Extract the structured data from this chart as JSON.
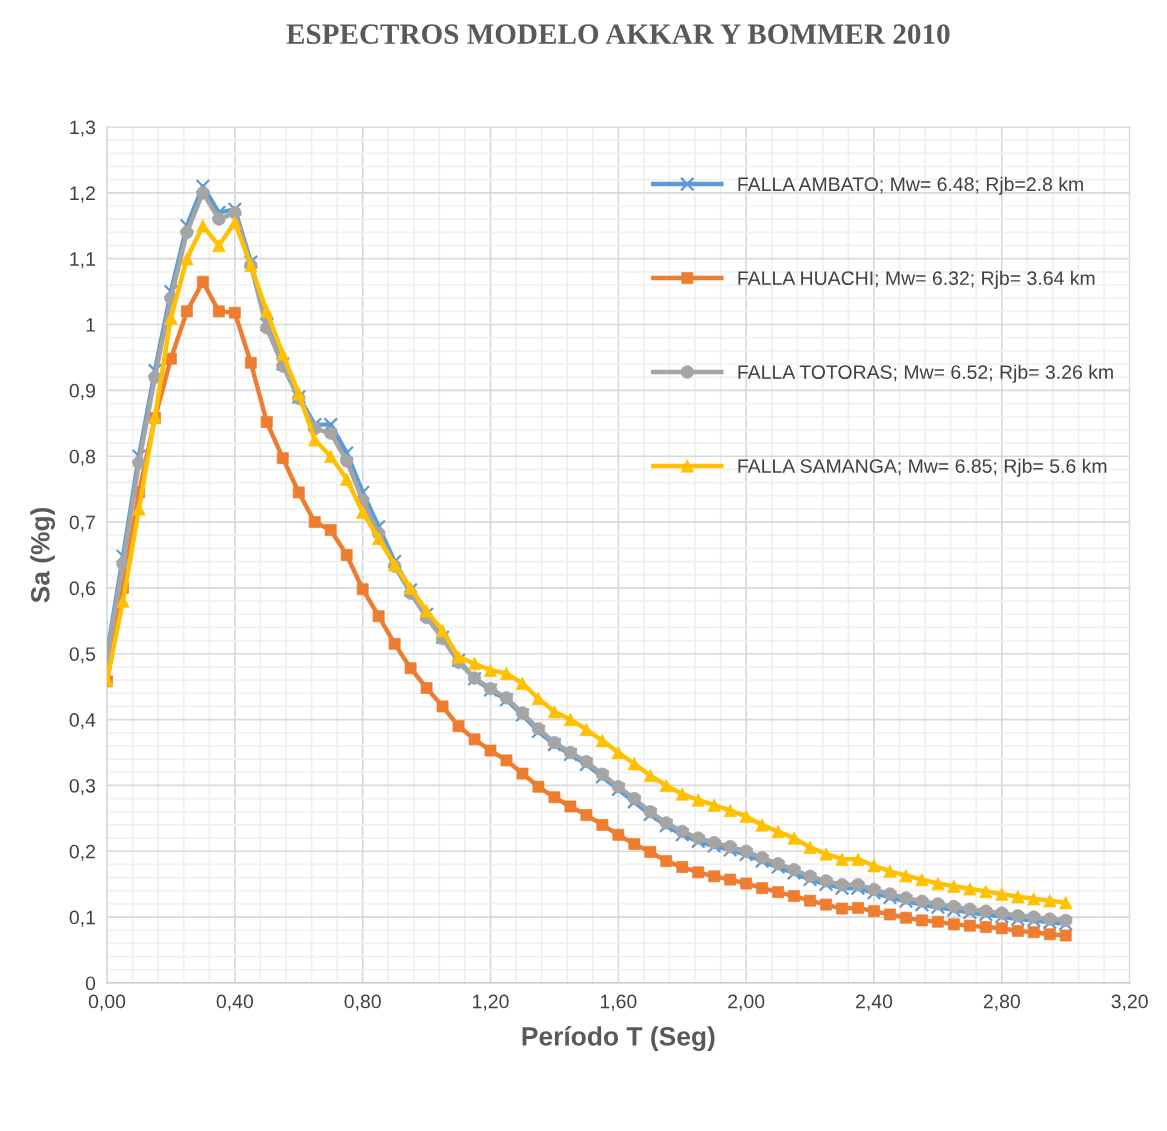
{
  "chart_data": {
    "type": "line",
    "title": "ESPECTROS MODELO AKKAR Y BOMMER 2010",
    "xlabel": "Período T (Seg)",
    "ylabel": "Sa (%g)",
    "x": [
      0,
      0.05,
      0.1,
      0.15,
      0.2,
      0.25,
      0.3,
      0.35,
      0.4,
      0.45,
      0.5,
      0.55,
      0.6,
      0.65,
      0.7,
      0.75,
      0.8,
      0.85,
      0.9,
      0.95,
      1.0,
      1.05,
      1.1,
      1.15,
      1.2,
      1.25,
      1.3,
      1.35,
      1.4,
      1.45,
      1.5,
      1.55,
      1.6,
      1.65,
      1.7,
      1.75,
      1.8,
      1.85,
      1.9,
      1.95,
      2.0,
      2.05,
      2.1,
      2.15,
      2.2,
      2.25,
      2.3,
      2.35,
      2.4,
      2.45,
      2.5,
      2.55,
      2.6,
      2.65,
      2.7,
      2.75,
      2.8,
      2.85,
      2.9,
      2.95,
      3.0
    ],
    "series": [
      {
        "name": "FALLA AMBATO; Mw= 6.48; Rjb=2.8 km",
        "color": "#5b9bd5",
        "marker": "cross",
        "values": [
          0.5,
          0.648,
          0.8,
          0.93,
          1.05,
          1.15,
          1.21,
          1.17,
          1.175,
          1.095,
          1.0,
          0.94,
          0.89,
          0.848,
          0.848,
          0.805,
          0.745,
          0.693,
          0.64,
          0.597,
          0.56,
          0.525,
          0.49,
          0.462,
          0.445,
          0.43,
          0.407,
          0.382,
          0.362,
          0.347,
          0.332,
          0.313,
          0.294,
          0.275,
          0.256,
          0.239,
          0.225,
          0.215,
          0.208,
          0.202,
          0.195,
          0.185,
          0.176,
          0.167,
          0.157,
          0.15,
          0.144,
          0.144,
          0.137,
          0.13,
          0.124,
          0.119,
          0.115,
          0.111,
          0.107,
          0.104,
          0.101,
          0.097,
          0.095,
          0.092,
          0.09
        ]
      },
      {
        "name": "FALLA HUACHI; Mw= 6.32; Rjb= 3.64 km",
        "color": "#ed7d31",
        "marker": "square",
        "values": [
          0.458,
          0.6,
          0.745,
          0.858,
          0.948,
          1.02,
          1.065,
          1.02,
          1.018,
          0.942,
          0.852,
          0.797,
          0.745,
          0.7,
          0.688,
          0.65,
          0.598,
          0.557,
          0.515,
          0.478,
          0.448,
          0.42,
          0.39,
          0.37,
          0.353,
          0.338,
          0.318,
          0.298,
          0.282,
          0.268,
          0.255,
          0.24,
          0.225,
          0.211,
          0.199,
          0.185,
          0.176,
          0.168,
          0.162,
          0.157,
          0.151,
          0.144,
          0.138,
          0.132,
          0.125,
          0.119,
          0.113,
          0.114,
          0.109,
          0.104,
          0.099,
          0.095,
          0.093,
          0.089,
          0.087,
          0.085,
          0.083,
          0.079,
          0.077,
          0.074,
          0.072
        ]
      },
      {
        "name": "FALLA TOTORAS; Mw= 6.52; Rjb= 3.26 km",
        "color": "#a5a5a5",
        "marker": "circle",
        "values": [
          0.495,
          0.637,
          0.79,
          0.92,
          1.04,
          1.14,
          1.2,
          1.16,
          1.17,
          1.09,
          0.995,
          0.937,
          0.888,
          0.842,
          0.835,
          0.793,
          0.733,
          0.683,
          0.633,
          0.592,
          0.555,
          0.523,
          0.487,
          0.463,
          0.447,
          0.433,
          0.41,
          0.386,
          0.365,
          0.35,
          0.336,
          0.317,
          0.298,
          0.28,
          0.26,
          0.243,
          0.23,
          0.22,
          0.213,
          0.207,
          0.2,
          0.19,
          0.181,
          0.172,
          0.162,
          0.155,
          0.149,
          0.149,
          0.142,
          0.135,
          0.129,
          0.124,
          0.12,
          0.116,
          0.112,
          0.109,
          0.106,
          0.102,
          0.1,
          0.097,
          0.095
        ]
      },
      {
        "name": "FALLA SAMANGA; Mw= 6.85; Rjb= 5.6 km",
        "color": "#ffc000",
        "marker": "triangle",
        "values": [
          0.46,
          0.58,
          0.72,
          0.86,
          1.01,
          1.1,
          1.15,
          1.12,
          1.155,
          1.09,
          1.02,
          0.955,
          0.895,
          0.825,
          0.8,
          0.765,
          0.715,
          0.675,
          0.635,
          0.6,
          0.565,
          0.535,
          0.495,
          0.485,
          0.475,
          0.47,
          0.455,
          0.432,
          0.412,
          0.4,
          0.385,
          0.368,
          0.35,
          0.333,
          0.315,
          0.3,
          0.287,
          0.278,
          0.27,
          0.262,
          0.253,
          0.24,
          0.23,
          0.22,
          0.206,
          0.196,
          0.188,
          0.188,
          0.178,
          0.17,
          0.163,
          0.157,
          0.151,
          0.147,
          0.143,
          0.139,
          0.135,
          0.131,
          0.128,
          0.125,
          0.122
        ]
      }
    ],
    "xlim": [
      0,
      3.2
    ],
    "xticks": [
      {
        "value": 0,
        "label": "0,00"
      },
      {
        "value": 0.4,
        "label": "0,40"
      },
      {
        "value": 0.8,
        "label": "0,80"
      },
      {
        "value": 1.2,
        "label": "1,20"
      },
      {
        "value": 1.6,
        "label": "1,60"
      },
      {
        "value": 2.0,
        "label": "2,00"
      },
      {
        "value": 2.4,
        "label": "2,40"
      },
      {
        "value": 2.8,
        "label": "2,80"
      },
      {
        "value": 3.2,
        "label": "3,20"
      }
    ],
    "ylim": [
      0,
      1.3
    ],
    "yticks": [
      0,
      {
        "value": 0.1,
        "label": "0,1"
      },
      {
        "value": 0.2,
        "label": "0,2"
      },
      {
        "value": 0.3,
        "label": "0,3"
      },
      {
        "value": 0.4,
        "label": "0,4"
      },
      {
        "value": 0.5,
        "label": "0,5"
      },
      {
        "value": 0.6,
        "label": "0,6"
      },
      {
        "value": 0.7,
        "label": "0,7"
      },
      {
        "value": 0.8,
        "label": "0,8"
      },
      {
        "value": 0.9,
        "label": "0,9"
      },
      1,
      {
        "value": 1.1,
        "label": "1,1"
      },
      {
        "value": 1.2,
        "label": "1,2"
      },
      {
        "value": 1.3,
        "label": "1,3"
      }
    ],
    "grid": true,
    "legend": "top right",
    "line_style": "solid"
  }
}
